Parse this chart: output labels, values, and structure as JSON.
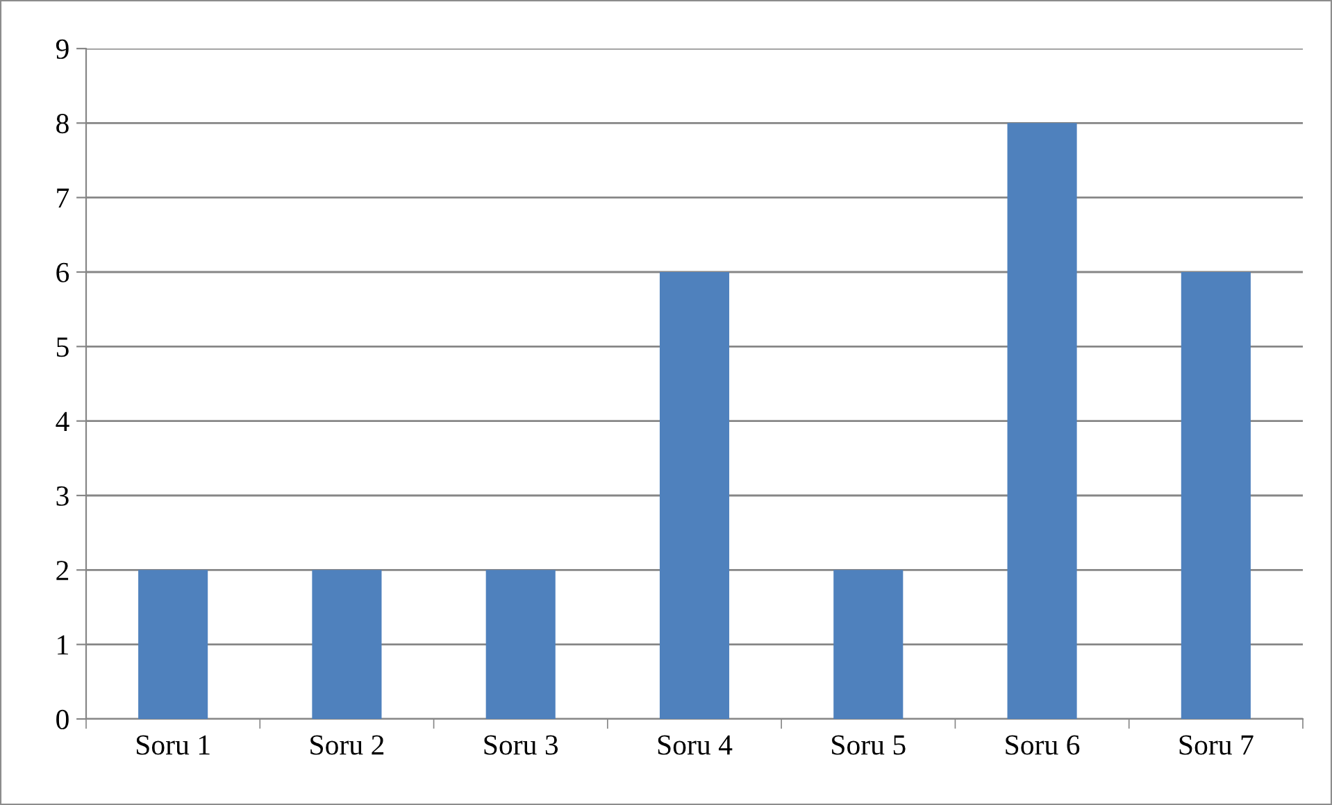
{
  "chart_data": {
    "type": "bar",
    "categories": [
      "Soru 1",
      "Soru 2",
      "Soru 3",
      "Soru 4",
      "Soru 5",
      "Soru 6",
      "Soru 7"
    ],
    "values": [
      2,
      2,
      2,
      6,
      2,
      8,
      6
    ],
    "color": "#4f81bd",
    "ylim": [
      0,
      9
    ],
    "yticks": [
      0,
      1,
      2,
      3,
      4,
      5,
      6,
      7,
      8,
      9
    ],
    "grid": "y",
    "legend": false
  }
}
